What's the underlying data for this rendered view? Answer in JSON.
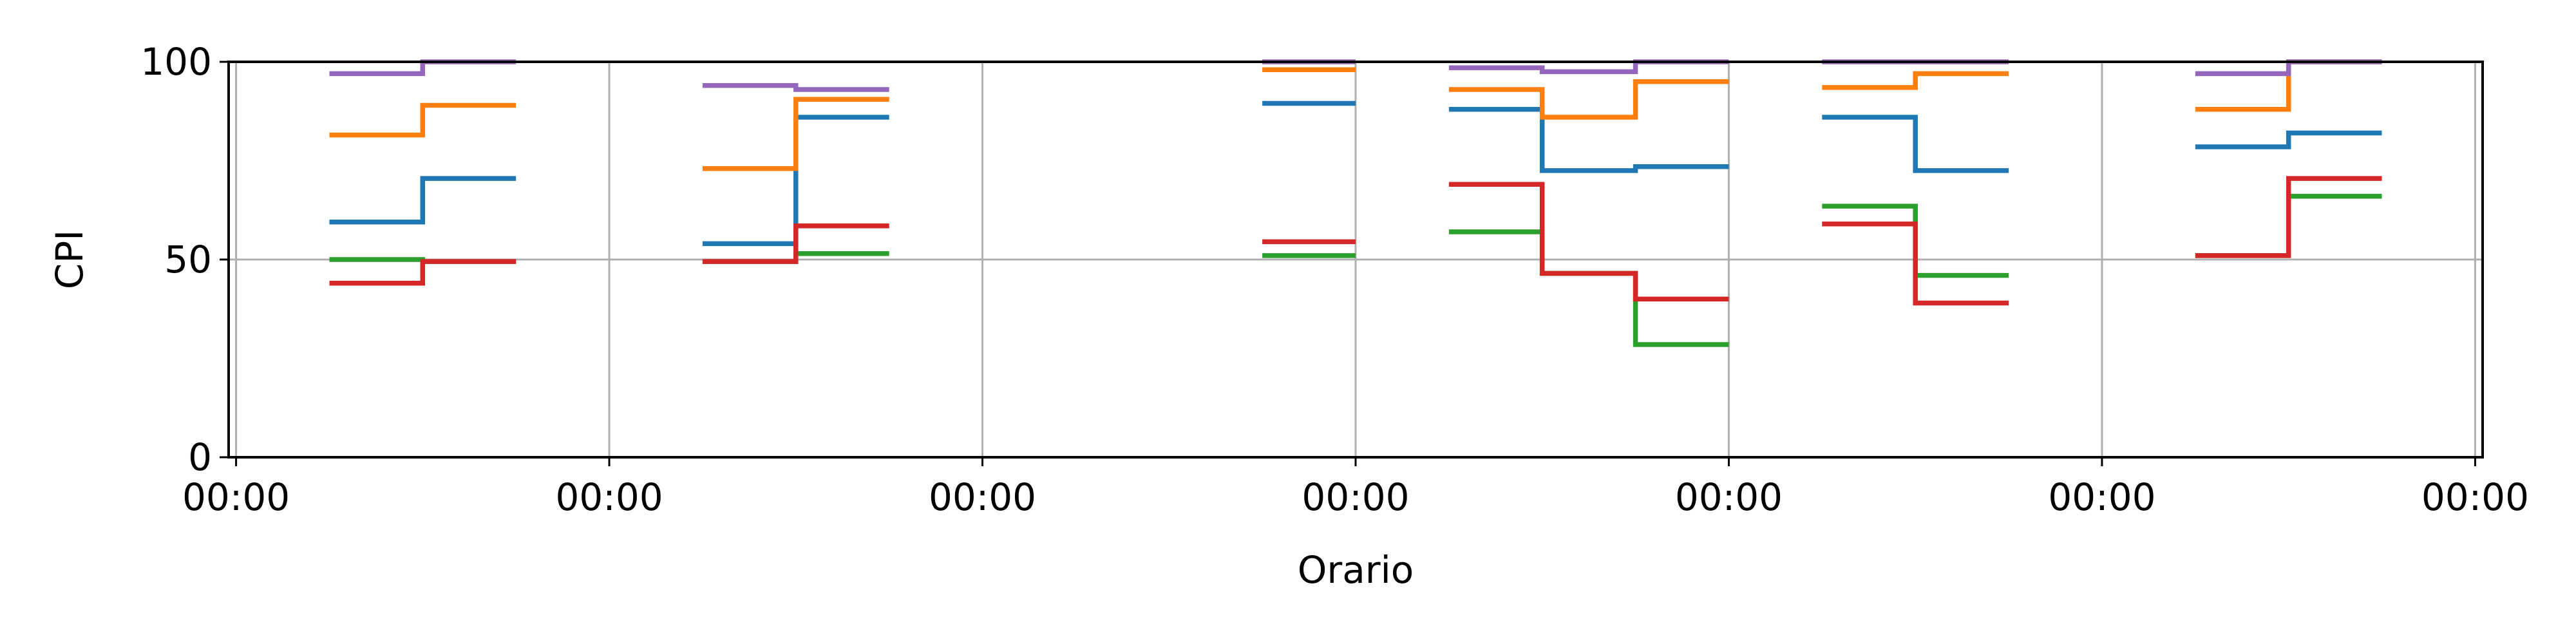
{
  "chart_data": {
    "type": "line",
    "step": true,
    "title": "",
    "xlabel": "Orario",
    "ylabel": "CPI",
    "ylim": [
      0,
      100
    ],
    "yticks": [
      0,
      50,
      100
    ],
    "xticks": [
      "00:00",
      "00:00",
      "00:00",
      "00:00",
      "00:00",
      "00:00",
      "00:00"
    ],
    "grid": true,
    "legend": false,
    "x_domain": [
      -0.02,
      6.02
    ],
    "series": [
      {
        "color": "#1f77b4",
        "segments": [
          [
            [
              0.25,
              59.5
            ],
            [
              0.5,
              59.5
            ],
            [
              0.5,
              70.5
            ],
            [
              0.75,
              70.5
            ]
          ],
          [
            [
              1.25,
              54
            ],
            [
              1.5,
              54
            ],
            [
              1.5,
              86
            ],
            [
              1.75,
              86
            ]
          ],
          [
            [
              2.75,
              89.5
            ],
            [
              3.0,
              89.5
            ]
          ],
          [
            [
              3.25,
              88
            ],
            [
              3.5,
              88
            ],
            [
              3.5,
              72.5
            ],
            [
              3.75,
              72.5
            ],
            [
              3.75,
              73.5
            ],
            [
              4.0,
              73.5
            ]
          ],
          [
            [
              4.25,
              86
            ],
            [
              4.5,
              86
            ],
            [
              4.5,
              72.5
            ],
            [
              4.75,
              72.5
            ]
          ],
          [
            [
              5.25,
              78.5
            ],
            [
              5.5,
              78.5
            ],
            [
              5.5,
              82
            ],
            [
              5.75,
              82
            ]
          ]
        ]
      },
      {
        "color": "#ff7f0e",
        "segments": [
          [
            [
              0.25,
              81.5
            ],
            [
              0.5,
              81.5
            ],
            [
              0.5,
              89
            ],
            [
              0.75,
              89
            ]
          ],
          [
            [
              1.25,
              73
            ],
            [
              1.5,
              73
            ],
            [
              1.5,
              90.5
            ],
            [
              1.75,
              90.5
            ]
          ],
          [
            [
              2.75,
              98
            ],
            [
              3.0,
              98
            ]
          ],
          [
            [
              3.25,
              93
            ],
            [
              3.5,
              93
            ],
            [
              3.5,
              86
            ],
            [
              3.75,
              86
            ],
            [
              3.75,
              95
            ],
            [
              4.0,
              95
            ]
          ],
          [
            [
              4.25,
              93.5
            ],
            [
              4.5,
              93.5
            ],
            [
              4.5,
              97
            ],
            [
              4.75,
              97
            ]
          ],
          [
            [
              5.25,
              88
            ],
            [
              5.5,
              88
            ],
            [
              5.5,
              100
            ],
            [
              5.75,
              100
            ]
          ]
        ]
      },
      {
        "color": "#2ca02c",
        "segments": [
          [
            [
              0.25,
              50
            ],
            [
              0.5,
              50
            ],
            [
              0.5,
              49.5
            ],
            [
              0.75,
              49.5
            ]
          ],
          [
            [
              1.25,
              49.5
            ],
            [
              1.5,
              49.5
            ],
            [
              1.5,
              51.5
            ],
            [
              1.75,
              51.5
            ]
          ],
          [
            [
              2.75,
              51
            ],
            [
              3.0,
              51
            ]
          ],
          [
            [
              3.25,
              57
            ],
            [
              3.5,
              57
            ],
            [
              3.5,
              46.5
            ],
            [
              3.75,
              46.5
            ],
            [
              3.75,
              28.5
            ],
            [
              4.0,
              28.5
            ]
          ],
          [
            [
              4.25,
              63.5
            ],
            [
              4.5,
              63.5
            ],
            [
              4.5,
              46
            ],
            [
              4.75,
              46
            ]
          ],
          [
            [
              5.25,
              51
            ],
            [
              5.5,
              51
            ],
            [
              5.5,
              66
            ],
            [
              5.75,
              66
            ]
          ]
        ]
      },
      {
        "color": "#d62728",
        "segments": [
          [
            [
              0.25,
              44
            ],
            [
              0.5,
              44
            ],
            [
              0.5,
              49.5
            ],
            [
              0.75,
              49.5
            ]
          ],
          [
            [
              1.25,
              49.5
            ],
            [
              1.5,
              49.5
            ],
            [
              1.5,
              58.5
            ],
            [
              1.75,
              58.5
            ]
          ],
          [
            [
              2.75,
              54.5
            ],
            [
              3.0,
              54.5
            ]
          ],
          [
            [
              3.25,
              69
            ],
            [
              3.5,
              69
            ],
            [
              3.5,
              46.5
            ],
            [
              3.75,
              46.5
            ],
            [
              3.75,
              40
            ],
            [
              4.0,
              40
            ]
          ],
          [
            [
              4.25,
              59
            ],
            [
              4.5,
              59
            ],
            [
              4.5,
              39
            ],
            [
              4.75,
              39
            ]
          ],
          [
            [
              5.25,
              51
            ],
            [
              5.5,
              51
            ],
            [
              5.5,
              70.5
            ],
            [
              5.75,
              70.5
            ]
          ]
        ]
      },
      {
        "color": "#9467bd",
        "segments": [
          [
            [
              0.25,
              97
            ],
            [
              0.5,
              97
            ],
            [
              0.5,
              100
            ],
            [
              0.75,
              100
            ]
          ],
          [
            [
              1.25,
              94
            ],
            [
              1.5,
              94
            ],
            [
              1.5,
              93
            ],
            [
              1.75,
              93
            ]
          ],
          [
            [
              2.75,
              100
            ],
            [
              3.0,
              100
            ]
          ],
          [
            [
              3.25,
              98.5
            ],
            [
              3.5,
              98.5
            ],
            [
              3.5,
              97.5
            ],
            [
              3.75,
              97.5
            ],
            [
              3.75,
              100
            ],
            [
              4.0,
              100
            ]
          ],
          [
            [
              4.25,
              100
            ],
            [
              4.5,
              100
            ],
            [
              4.5,
              100
            ],
            [
              4.75,
              100
            ]
          ],
          [
            [
              5.25,
              97
            ],
            [
              5.5,
              97
            ],
            [
              5.5,
              100
            ],
            [
              5.75,
              100
            ]
          ]
        ]
      }
    ]
  }
}
